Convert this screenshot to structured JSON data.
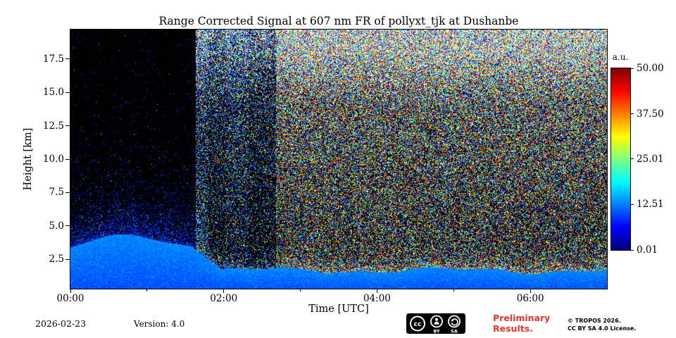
{
  "title": "Range Corrected Signal at 607 nm FR of pollyxt_tjk at Dushanbe",
  "colors": {
    "preliminary_red": "#e8352b",
    "plot_background": "#000000",
    "figure_background": "#ffffff"
  },
  "badge": {
    "cc": "cc",
    "by": "BY",
    "sa": "SA"
  },
  "footer": {
    "date": "2026-02-23",
    "version": "Version: 4.0",
    "preliminary_line1": "Preliminary",
    "preliminary_line2": "Results.",
    "copyright_line1": "© TROPOS 2026.",
    "copyright_line2": "CC BY SA 4.0 License."
  },
  "chart_data": {
    "type": "heatmap",
    "title": "Range Corrected Signal at 607 nm FR of pollyxt_tjk at Dushanbe",
    "xlabel": "Time [UTC]",
    "ylabel": "Height [km]",
    "xlim_hours": [
      0,
      7
    ],
    "ylim_km": [
      0.3,
      19.7
    ],
    "x_ticks_hours": [
      0,
      2,
      4,
      6
    ],
    "x_tick_labels": [
      "00:00",
      "02:00",
      "04:00",
      "06:00"
    ],
    "x_minor_ticks_hours": [
      1,
      3,
      5
    ],
    "y_ticks_km": [
      2.5,
      5,
      7.5,
      10,
      12.5,
      15,
      17.5
    ],
    "y_tick_labels": [
      "2.5",
      "5.0",
      "7.5",
      "10.0",
      "12.5",
      "15.0",
      "17.5"
    ],
    "grid": false,
    "colorbar": {
      "label": "a.u.",
      "colormap": "jet",
      "vmin": 0.01,
      "vmax": 50,
      "tick_values": [
        50,
        37.5,
        25.01,
        12.51,
        0.01
      ],
      "tick_labels": [
        "50.00",
        "37.50",
        "25.01",
        "12.51",
        "0.01"
      ]
    },
    "content": {
      "description": "Speckled range-corrected lidar signal: bright blue strong-signal layer below ~2-4.5 km for the whole period; dark low-noise background before ~01:40 UTC; progressively denser multicolour (jet) daylight noise after ~01:40 and especially after ~02:40 UTC, noise density increasing with height until nearly saturated above ~15 km.",
      "seed": 1337,
      "surface_layer": {
        "solid_top_km_left": 3.3,
        "solid_top_km_right": 1.7,
        "hump_center_h": 0.75,
        "hump_amp_km": 1.2,
        "transition_start_h": 1.6,
        "transition_end_h": 2.0,
        "fade_km_left": 1.5,
        "fade_km_right": 0.7
      },
      "noise_segments": [
        {
          "t0": 0.0,
          "t1": 1.63,
          "style": "dark",
          "density": 0.05,
          "white": 0.004
        },
        {
          "t0": 1.63,
          "t1": 2.68,
          "style": "mixed",
          "density": 0.45,
          "white": 0.14
        },
        {
          "t0": 2.68,
          "t1": 7.01,
          "style": "bright",
          "density": 0.82,
          "white": 0.16
        }
      ],
      "stripes": [
        {
          "t0": 1.63,
          "t1": 1.8,
          "extra": 0.15
        },
        {
          "t0": 2.02,
          "t1": 2.32,
          "extra": 0.1
        }
      ]
    }
  }
}
